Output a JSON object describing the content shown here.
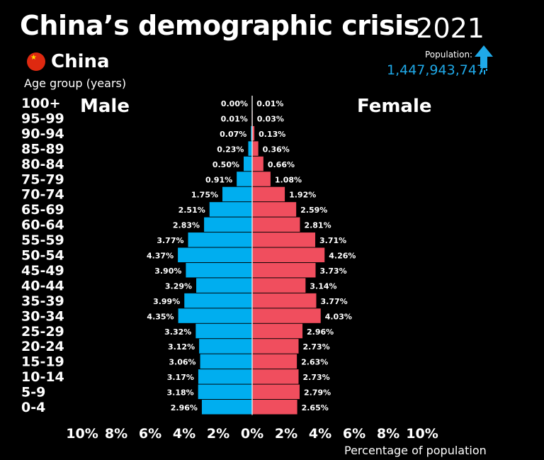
{
  "header": {
    "title": "China’s demographic crisis",
    "year": "2021",
    "country": "China",
    "flag_icon": "china-flag-icon",
    "population_label": "Population:",
    "population_value": "1,447,943,747",
    "arrow_icon": "arrow-up-icon"
  },
  "chart_data": {
    "type": "bar",
    "orientation": "horizontal-pyramid",
    "ylabel": "Age group (years)",
    "xlabel": "Percentage of population",
    "xlim": [
      -10,
      10
    ],
    "xticks": [
      "10%",
      "8%",
      "6%",
      "4%",
      "2%",
      "0%",
      "2%",
      "4%",
      "6%",
      "8%",
      "10%"
    ],
    "categories": [
      "100+",
      "95-99",
      "90-94",
      "85-89",
      "80-84",
      "75-79",
      "70-74",
      "65-69",
      "60-64",
      "55-59",
      "50-54",
      "45-49",
      "40-44",
      "35-39",
      "30-34",
      "25-29",
      "20-24",
      "15-19",
      "10-14",
      "5-9",
      "0-4"
    ],
    "series": [
      {
        "name": "Male",
        "color": "#00aeef",
        "values": [
          0.0,
          0.01,
          0.07,
          0.23,
          0.5,
          0.91,
          1.75,
          2.51,
          2.83,
          3.77,
          4.37,
          3.9,
          3.29,
          3.99,
          4.35,
          3.32,
          3.12,
          3.06,
          3.17,
          3.18,
          2.96
        ],
        "labels": [
          "0.00%",
          "0.01%",
          "0.07%",
          "0.23%",
          "0.50%",
          "0.91%",
          "1.75%",
          "2.51%",
          "2.83%",
          "3.77%",
          "4.37%",
          "3.90%",
          "3.29%",
          "3.99%",
          "4.35%",
          "3.32%",
          "3.12%",
          "3.06%",
          "3.17%",
          "3.18%",
          "2.96%"
        ]
      },
      {
        "name": "Female",
        "color": "#f04e5e",
        "values": [
          0.01,
          0.03,
          0.13,
          0.36,
          0.66,
          1.08,
          1.92,
          2.59,
          2.81,
          3.71,
          4.26,
          3.73,
          3.14,
          3.77,
          4.03,
          2.96,
          2.73,
          2.63,
          2.73,
          2.79,
          2.65
        ],
        "labels": [
          "0.01%",
          "0.03%",
          "0.13%",
          "0.36%",
          "0.66%",
          "1.08%",
          "1.92%",
          "2.59%",
          "2.81%",
          "3.71%",
          "4.26%",
          "3.73%",
          "3.14%",
          "3.77%",
          "4.03%",
          "2.96%",
          "2.73%",
          "2.63%",
          "2.73%",
          "2.79%",
          "2.65%"
        ]
      }
    ]
  }
}
